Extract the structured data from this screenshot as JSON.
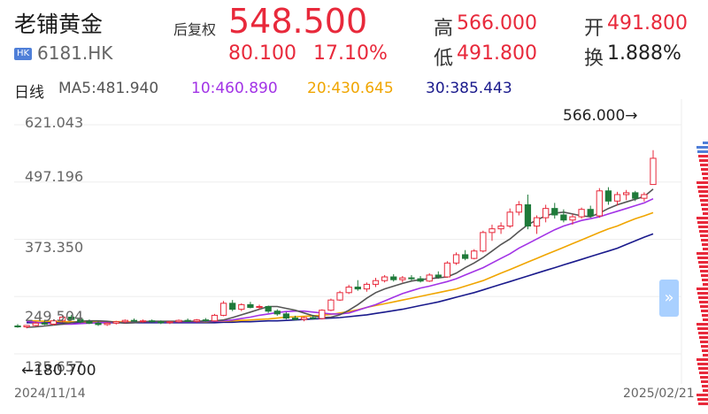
{
  "stock": {
    "name": "老铺黄金",
    "market_badge": "HK",
    "code": "6181.HK",
    "adjust_label": "后复权",
    "price": "548.500",
    "change": "80.100",
    "change_pct": "17.10%",
    "high_label": "高",
    "high_value": "566.000",
    "low_label": "低",
    "low_value": "491.800",
    "open_label": "开",
    "open_value": "491.800",
    "turnover_label": "换",
    "turnover_value": "1.888%"
  },
  "indicator": {
    "period": "日线",
    "ma5": "MA5:481.940",
    "ma10": "10:460.890",
    "ma20": "20:430.645",
    "ma30": "30:385.443"
  },
  "colors": {
    "up": "#e8293b",
    "down": "#1f7a3a",
    "ma5": "#555555",
    "ma10": "#a233e6",
    "ma20": "#f0a500",
    "ma30": "#1a1a8c"
  },
  "chart": {
    "y_ticks": [
      "621.043",
      "497.196",
      "373.350",
      "249.504",
      "125.657"
    ],
    "high_marker": "566.000→",
    "low_marker": "←180.700",
    "start_date": "2024/11/14",
    "end_date": "2025/02/21",
    "expand_icon": "double-chevron-right"
  },
  "chart_data": {
    "type": "candlestick",
    "ylim": [
      125.657,
      621.043
    ],
    "candles": [
      {
        "o": 186,
        "h": 190,
        "l": 182,
        "c": 184
      },
      {
        "o": 184,
        "h": 188,
        "l": 180.7,
        "c": 187
      },
      {
        "o": 187,
        "h": 195,
        "l": 185,
        "c": 192
      },
      {
        "o": 192,
        "h": 198,
        "l": 188,
        "c": 190
      },
      {
        "o": 190,
        "h": 200,
        "l": 187,
        "c": 197
      },
      {
        "o": 197,
        "h": 208,
        "l": 194,
        "c": 205
      },
      {
        "o": 205,
        "h": 210,
        "l": 198,
        "c": 200
      },
      {
        "o": 200,
        "h": 204,
        "l": 192,
        "c": 195
      },
      {
        "o": 195,
        "h": 200,
        "l": 190,
        "c": 192
      },
      {
        "o": 192,
        "h": 196,
        "l": 186,
        "c": 189
      },
      {
        "o": 189,
        "h": 194,
        "l": 186,
        "c": 192
      },
      {
        "o": 192,
        "h": 197,
        "l": 189,
        "c": 195
      },
      {
        "o": 195,
        "h": 200,
        "l": 192,
        "c": 198
      },
      {
        "o": 198,
        "h": 202,
        "l": 195,
        "c": 196
      },
      {
        "o": 196,
        "h": 200,
        "l": 193,
        "c": 197
      },
      {
        "o": 197,
        "h": 200,
        "l": 193,
        "c": 195
      },
      {
        "o": 195,
        "h": 198,
        "l": 190,
        "c": 193
      },
      {
        "o": 193,
        "h": 197,
        "l": 190,
        "c": 195
      },
      {
        "o": 195,
        "h": 200,
        "l": 193,
        "c": 198
      },
      {
        "o": 198,
        "h": 202,
        "l": 195,
        "c": 196
      },
      {
        "o": 196,
        "h": 201,
        "l": 193,
        "c": 199
      },
      {
        "o": 199,
        "h": 203,
        "l": 195,
        "c": 197
      },
      {
        "o": 197,
        "h": 212,
        "l": 195,
        "c": 209
      },
      {
        "o": 209,
        "h": 240,
        "l": 207,
        "c": 235
      },
      {
        "o": 235,
        "h": 242,
        "l": 218,
        "c": 222
      },
      {
        "o": 222,
        "h": 235,
        "l": 218,
        "c": 232
      },
      {
        "o": 232,
        "h": 238,
        "l": 224,
        "c": 226
      },
      {
        "o": 226,
        "h": 232,
        "l": 222,
        "c": 228
      },
      {
        "o": 228,
        "h": 230,
        "l": 214,
        "c": 218
      },
      {
        "o": 218,
        "h": 222,
        "l": 208,
        "c": 212
      },
      {
        "o": 212,
        "h": 216,
        "l": 200,
        "c": 203
      },
      {
        "o": 203,
        "h": 208,
        "l": 198,
        "c": 200
      },
      {
        "o": 200,
        "h": 206,
        "l": 196,
        "c": 204
      },
      {
        "o": 204,
        "h": 210,
        "l": 200,
        "c": 202
      },
      {
        "o": 202,
        "h": 222,
        "l": 200,
        "c": 220
      },
      {
        "o": 220,
        "h": 245,
        "l": 218,
        "c": 242
      },
      {
        "o": 242,
        "h": 262,
        "l": 240,
        "c": 258
      },
      {
        "o": 258,
        "h": 275,
        "l": 255,
        "c": 270
      },
      {
        "o": 270,
        "h": 285,
        "l": 262,
        "c": 266
      },
      {
        "o": 266,
        "h": 280,
        "l": 260,
        "c": 276
      },
      {
        "o": 276,
        "h": 290,
        "l": 270,
        "c": 284
      },
      {
        "o": 284,
        "h": 296,
        "l": 280,
        "c": 292
      },
      {
        "o": 292,
        "h": 298,
        "l": 282,
        "c": 286
      },
      {
        "o": 286,
        "h": 294,
        "l": 280,
        "c": 290
      },
      {
        "o": 290,
        "h": 296,
        "l": 284,
        "c": 288
      },
      {
        "o": 288,
        "h": 294,
        "l": 280,
        "c": 283
      },
      {
        "o": 283,
        "h": 300,
        "l": 281,
        "c": 296
      },
      {
        "o": 296,
        "h": 304,
        "l": 288,
        "c": 292
      },
      {
        "o": 292,
        "h": 326,
        "l": 290,
        "c": 322
      },
      {
        "o": 322,
        "h": 345,
        "l": 318,
        "c": 340
      },
      {
        "o": 340,
        "h": 350,
        "l": 328,
        "c": 332
      },
      {
        "o": 332,
        "h": 352,
        "l": 330,
        "c": 348
      },
      {
        "o": 348,
        "h": 392,
        "l": 345,
        "c": 388
      },
      {
        "o": 388,
        "h": 405,
        "l": 370,
        "c": 396
      },
      {
        "o": 396,
        "h": 410,
        "l": 385,
        "c": 402
      },
      {
        "o": 402,
        "h": 440,
        "l": 398,
        "c": 432
      },
      {
        "o": 432,
        "h": 456,
        "l": 425,
        "c": 448
      },
      {
        "o": 448,
        "h": 470,
        "l": 395,
        "c": 402
      },
      {
        "o": 402,
        "h": 425,
        "l": 385,
        "c": 420
      },
      {
        "o": 420,
        "h": 448,
        "l": 410,
        "c": 440
      },
      {
        "o": 440,
        "h": 452,
        "l": 418,
        "c": 426
      },
      {
        "o": 426,
        "h": 438,
        "l": 410,
        "c": 415
      },
      {
        "o": 415,
        "h": 428,
        "l": 405,
        "c": 422
      },
      {
        "o": 422,
        "h": 442,
        "l": 418,
        "c": 438
      },
      {
        "o": 438,
        "h": 446,
        "l": 420,
        "c": 424
      },
      {
        "o": 424,
        "h": 484,
        "l": 420,
        "c": 478
      },
      {
        "o": 478,
        "h": 486,
        "l": 448,
        "c": 456
      },
      {
        "o": 456,
        "h": 476,
        "l": 446,
        "c": 470
      },
      {
        "o": 470,
        "h": 480,
        "l": 458,
        "c": 474
      },
      {
        "o": 474,
        "h": 478,
        "l": 456,
        "c": 462
      },
      {
        "o": 462,
        "h": 475,
        "l": 455,
        "c": 470
      },
      {
        "o": 491.8,
        "h": 566,
        "l": 491.8,
        "c": 548.5
      }
    ],
    "ma5": [
      183,
      184,
      186,
      188,
      190,
      193,
      196,
      197,
      197,
      196,
      194,
      192,
      193,
      195,
      196,
      196,
      196,
      196,
      196,
      196,
      197,
      197,
      199,
      204,
      210,
      216,
      222,
      228,
      228,
      224,
      220,
      214,
      208,
      204,
      205,
      210,
      220,
      232,
      246,
      258,
      266,
      272,
      278,
      283,
      286,
      288,
      290,
      292,
      300,
      312,
      322,
      334,
      348,
      362,
      374,
      390,
      405,
      415,
      424,
      430,
      432,
      428,
      424,
      422,
      430,
      440,
      448,
      454,
      460,
      466,
      482
    ],
    "ma10": [
      196,
      194,
      192,
      191,
      190,
      190,
      191,
      192,
      193,
      194,
      194,
      193,
      194,
      195,
      195,
      195,
      195,
      195,
      195,
      195,
      196,
      196,
      197,
      199,
      202,
      205,
      209,
      212,
      215,
      217,
      218,
      218,
      216,
      214,
      212,
      212,
      214,
      220,
      226,
      232,
      240,
      248,
      256,
      262,
      268,
      272,
      277,
      282,
      288,
      296,
      304,
      312,
      322,
      332,
      342,
      354,
      364,
      374,
      384,
      394,
      402,
      408,
      414,
      418,
      422,
      428,
      434,
      440,
      446,
      452,
      461
    ],
    "ma20": [
      197,
      197,
      196,
      196,
      195,
      195,
      195,
      195,
      195,
      195,
      195,
      195,
      195,
      195,
      195,
      195,
      195,
      195,
      195,
      195,
      195,
      196,
      196,
      197,
      198,
      199,
      200,
      201,
      203,
      205,
      206,
      207,
      208,
      209,
      211,
      214,
      217,
      221,
      226,
      230,
      234,
      238,
      242,
      246,
      250,
      254,
      258,
      262,
      266,
      272,
      278,
      284,
      292,
      300,
      308,
      316,
      324,
      332,
      340,
      348,
      356,
      364,
      372,
      380,
      388,
      396,
      402,
      410,
      418,
      424,
      431
    ],
    "ma30": [
      193,
      193,
      193,
      193,
      193,
      193,
      193,
      193,
      193,
      193,
      193,
      193,
      193,
      193,
      193,
      193,
      193,
      193,
      193,
      193,
      193,
      193,
      194,
      194,
      195,
      195,
      196,
      197,
      197,
      198,
      199,
      200,
      201,
      202,
      203,
      204,
      206,
      208,
      210,
      213,
      216,
      219,
      222,
      226,
      230,
      234,
      238,
      243,
      248,
      253,
      258,
      264,
      270,
      276,
      282,
      288,
      294,
      300,
      306,
      312,
      318,
      324,
      330,
      336,
      342,
      348,
      354,
      362,
      370,
      378,
      385
    ]
  }
}
